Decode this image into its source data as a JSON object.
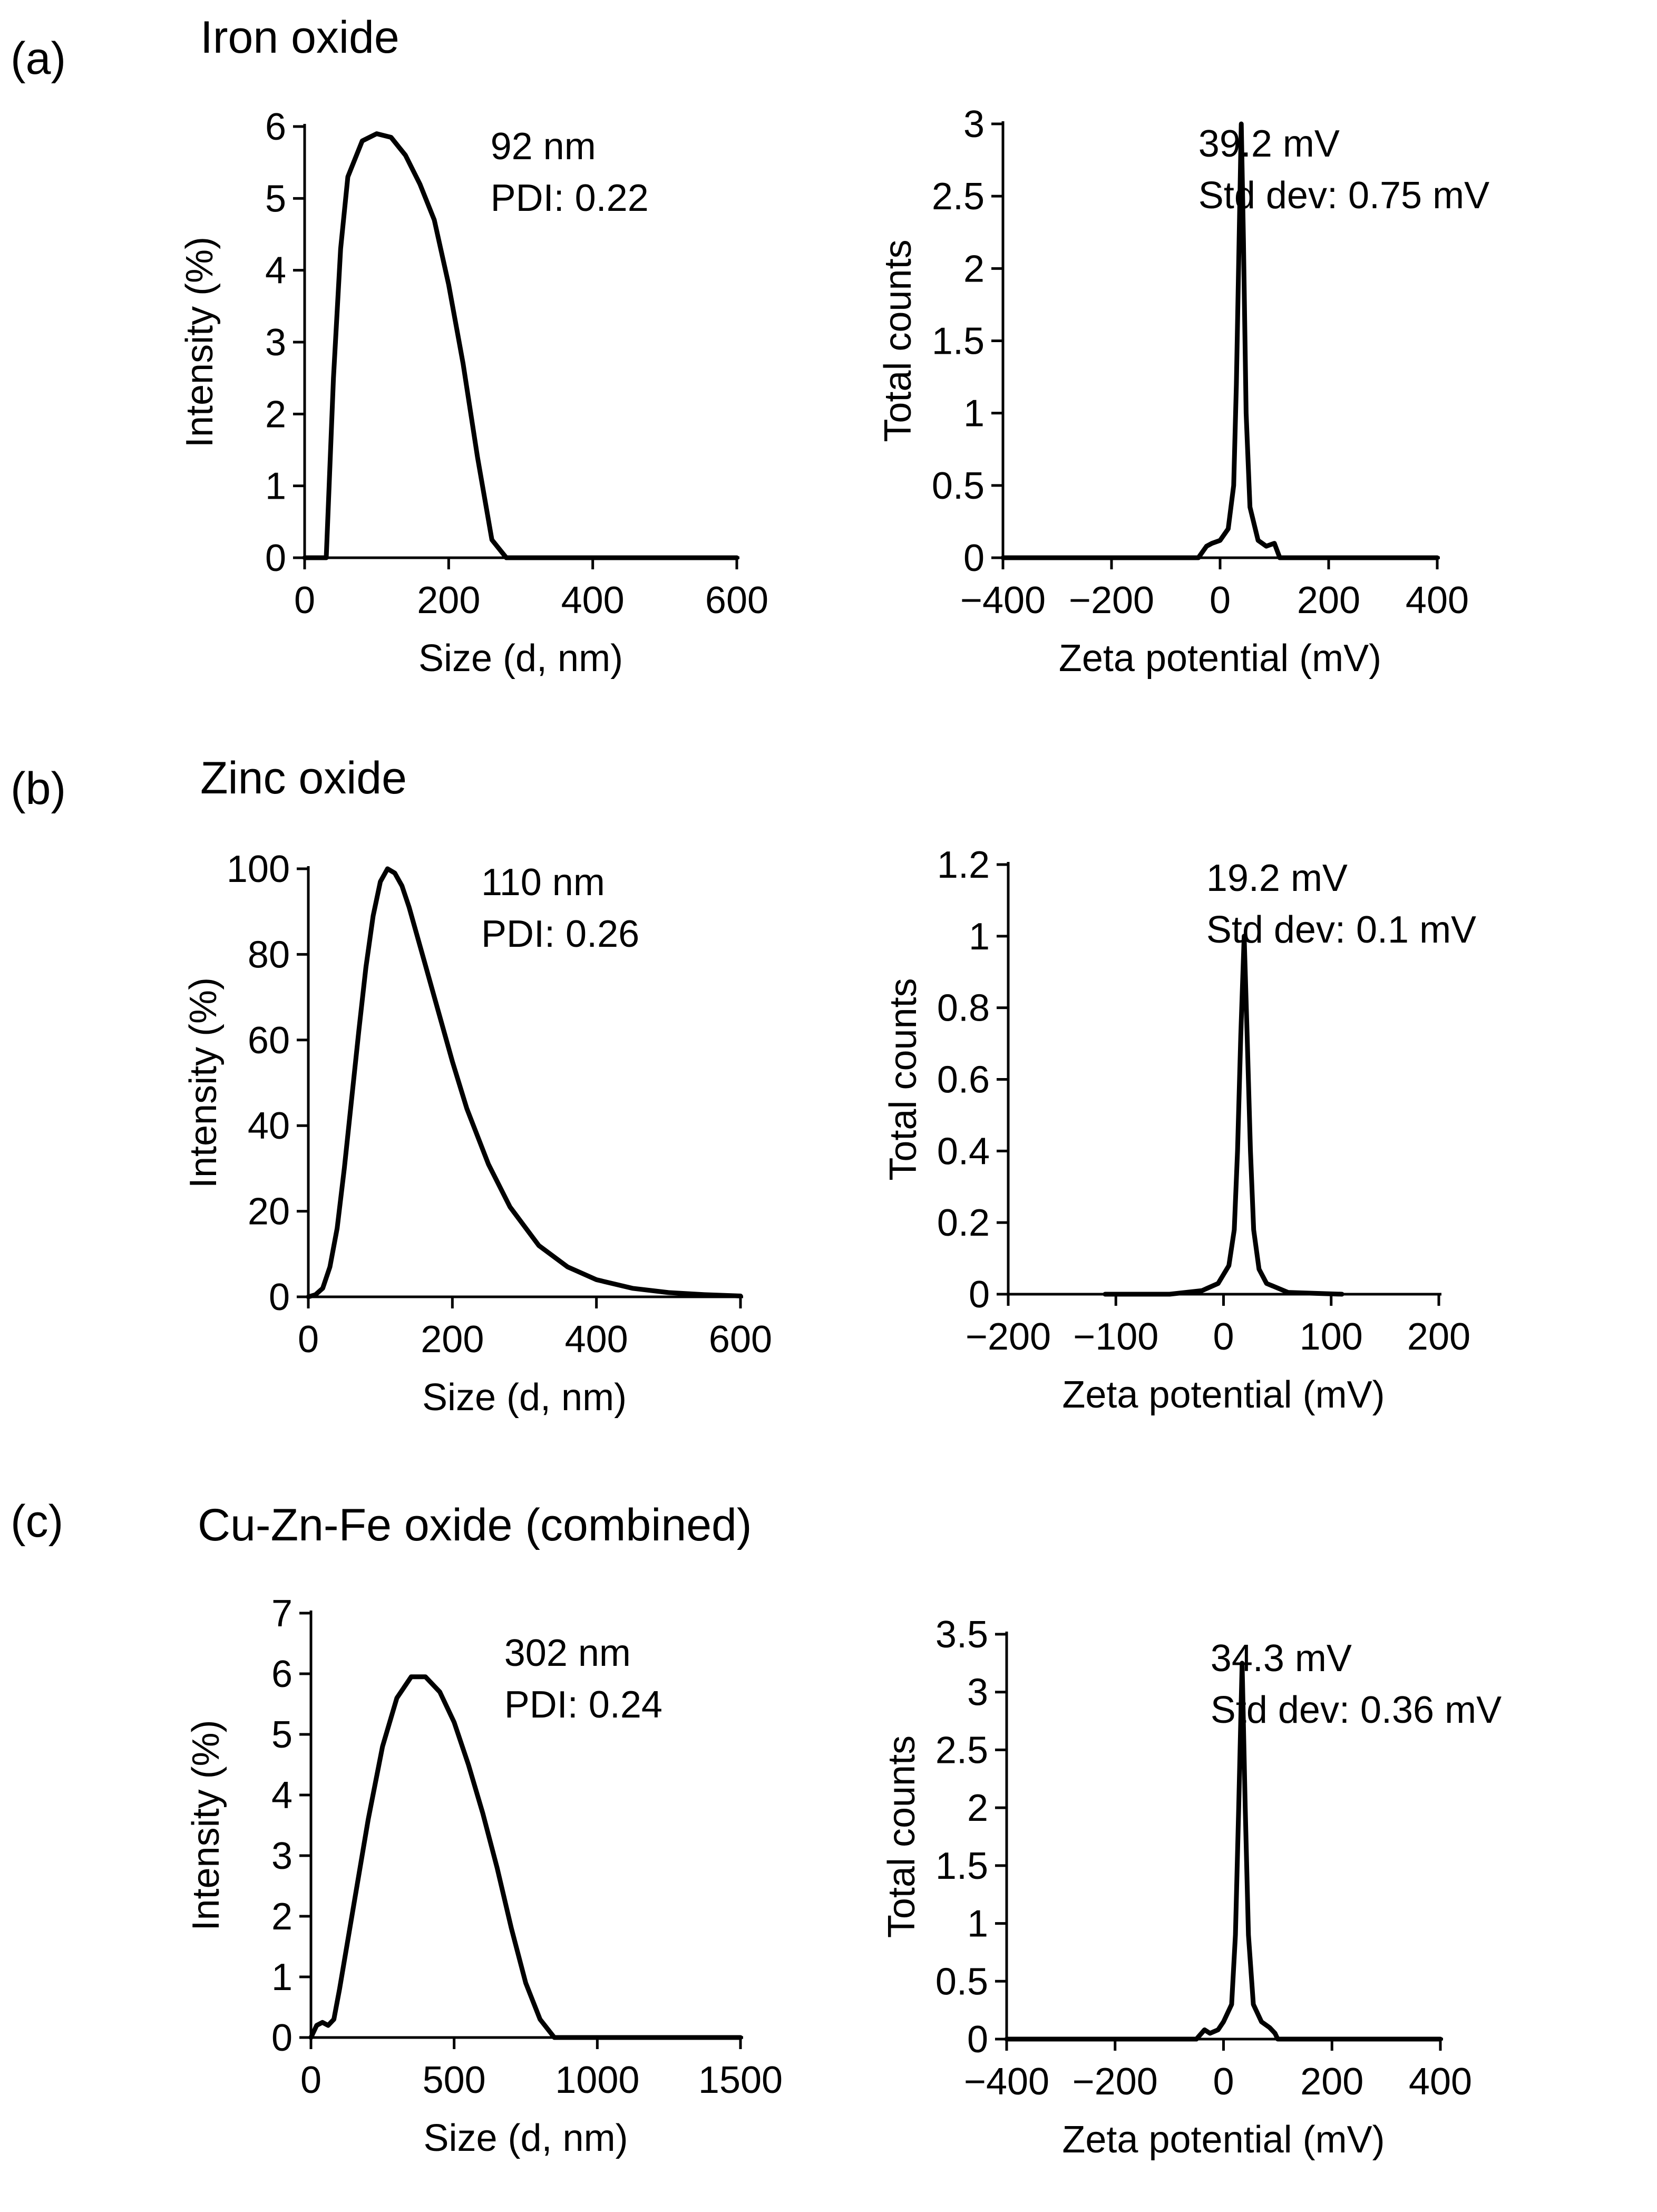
{
  "chart_data": [
    {
      "panel": "(a)",
      "material": "Iron oxide",
      "type": "line",
      "title": "",
      "xlabel": "Size (d, nm)",
      "ylabel": "Intensity (%)",
      "xlim": [
        0,
        600
      ],
      "ylim": [
        0,
        6
      ],
      "xticks": [
        0,
        200,
        400,
        600
      ],
      "yticks": [
        0,
        1,
        2,
        3,
        4,
        5,
        6
      ],
      "annotations": [
        "92 nm",
        "PDI: 0.22"
      ],
      "x": [
        0,
        30,
        40,
        50,
        60,
        80,
        100,
        120,
        140,
        160,
        180,
        200,
        220,
        240,
        260,
        280,
        600
      ],
      "y": [
        0,
        0,
        2.5,
        4.3,
        5.3,
        5.8,
        5.9,
        5.85,
        5.6,
        5.2,
        4.7,
        3.8,
        2.7,
        1.4,
        0.25,
        0,
        0
      ]
    },
    {
      "panel": "(a)",
      "material": "Iron oxide",
      "type": "line",
      "title": "",
      "xlabel": "Zeta potential (mV)",
      "ylabel": "Total counts",
      "xlim": [
        -400,
        400
      ],
      "ylim": [
        0,
        3
      ],
      "xticks": [
        -400,
        -200,
        0,
        200,
        400
      ],
      "yticks": [
        0,
        0.5,
        1,
        1.5,
        2,
        2.5,
        3
      ],
      "annotations": [
        "39.2 mV",
        "Std dev: 0.75 mV"
      ],
      "x": [
        -400,
        -40,
        -25,
        -15,
        0,
        15,
        25,
        30,
        35,
        39,
        43,
        48,
        55,
        70,
        85,
        100,
        110,
        400
      ],
      "y": [
        0,
        0,
        0.08,
        0.1,
        0.12,
        0.2,
        0.5,
        1.2,
        2.2,
        3.0,
        2.2,
        1.0,
        0.35,
        0.12,
        0.08,
        0.1,
        0,
        0
      ]
    },
    {
      "panel": "(b)",
      "material": "Zinc oxide",
      "type": "line",
      "title": "",
      "xlabel": "Size (d, nm)",
      "ylabel": "Intensity (%)",
      "xlim": [
        0,
        600
      ],
      "ylim": [
        0,
        100
      ],
      "xticks": [
        0,
        200,
        400,
        600
      ],
      "yticks": [
        0,
        20,
        40,
        60,
        80,
        100
      ],
      "annotations": [
        "110 nm",
        "PDI: 0.26"
      ],
      "x": [
        0,
        10,
        20,
        30,
        40,
        50,
        60,
        70,
        80,
        90,
        100,
        110,
        120,
        130,
        140,
        160,
        180,
        200,
        220,
        250,
        280,
        320,
        360,
        400,
        450,
        500,
        550,
        600
      ],
      "y": [
        0,
        0.5,
        2,
        7,
        16,
        30,
        46,
        62,
        77,
        89,
        97,
        100,
        99,
        96,
        91,
        79,
        67,
        55,
        44,
        31,
        21,
        12,
        7,
        4,
        2,
        1,
        0.5,
        0.2
      ]
    },
    {
      "panel": "(b)",
      "material": "Zinc oxide",
      "type": "line",
      "title": "",
      "xlabel": "Zeta potential (mV)",
      "ylabel": "Total counts",
      "xlim": [
        -200,
        200
      ],
      "ylim": [
        0,
        1.2
      ],
      "xticks": [
        -200,
        -100,
        0,
        100,
        200
      ],
      "yticks": [
        0,
        0.2,
        0.4,
        0.6,
        0.8,
        1,
        1.2
      ],
      "annotations": [
        "19.2 mV",
        "Std dev: 0.1 mV"
      ],
      "x": [
        -110,
        -50,
        -20,
        -5,
        5,
        10,
        13,
        16,
        19.2,
        22,
        25,
        28,
        33,
        40,
        60,
        110
      ],
      "y": [
        0,
        0,
        0.01,
        0.03,
        0.08,
        0.18,
        0.4,
        0.72,
        1.0,
        0.72,
        0.4,
        0.18,
        0.07,
        0.03,
        0.005,
        0
      ]
    },
    {
      "panel": "(c)",
      "material": "Cu-Zn-Fe oxide (combined)",
      "type": "line",
      "title": "",
      "xlabel": "Size (d, nm)",
      "ylabel": "Intensity (%)",
      "xlim": [
        0,
        1500
      ],
      "ylim": [
        0,
        7
      ],
      "xticks": [
        0,
        500,
        1000,
        1500
      ],
      "yticks": [
        0,
        1,
        2,
        3,
        4,
        5,
        6,
        7
      ],
      "annotations": [
        "302 nm",
        "PDI: 0.24"
      ],
      "x": [
        0,
        20,
        40,
        60,
        80,
        100,
        150,
        200,
        250,
        300,
        350,
        400,
        450,
        500,
        550,
        600,
        650,
        700,
        750,
        800,
        850,
        900,
        1500
      ],
      "y": [
        0,
        0.2,
        0.25,
        0.2,
        0.3,
        0.8,
        2.2,
        3.6,
        4.8,
        5.6,
        5.95,
        5.95,
        5.7,
        5.2,
        4.5,
        3.7,
        2.8,
        1.8,
        0.9,
        0.3,
        0,
        0,
        0
      ]
    },
    {
      "panel": "(c)",
      "material": "Cu-Zn-Fe oxide (combined)",
      "type": "line",
      "title": "",
      "xlabel": "Zeta potential (mV)",
      "ylabel": "Total counts",
      "xlim": [
        -400,
        400
      ],
      "ylim": [
        0,
        3.5
      ],
      "xticks": [
        -400,
        -200,
        0,
        200,
        400
      ],
      "yticks": [
        0,
        0.5,
        1,
        1.5,
        2,
        2.5,
        3,
        3.5
      ],
      "annotations": [
        "34.3 mV",
        "Std dev: 0.36 mV"
      ],
      "x": [
        -400,
        -50,
        -35,
        -25,
        -10,
        0,
        15,
        22,
        28,
        34.3,
        40,
        46,
        55,
        70,
        85,
        95,
        100,
        400
      ],
      "y": [
        0,
        0,
        0.08,
        0.05,
        0.08,
        0.15,
        0.3,
        0.9,
        2.0,
        3.25,
        2.0,
        0.9,
        0.3,
        0.15,
        0.1,
        0.05,
        0,
        0
      ]
    }
  ]
}
